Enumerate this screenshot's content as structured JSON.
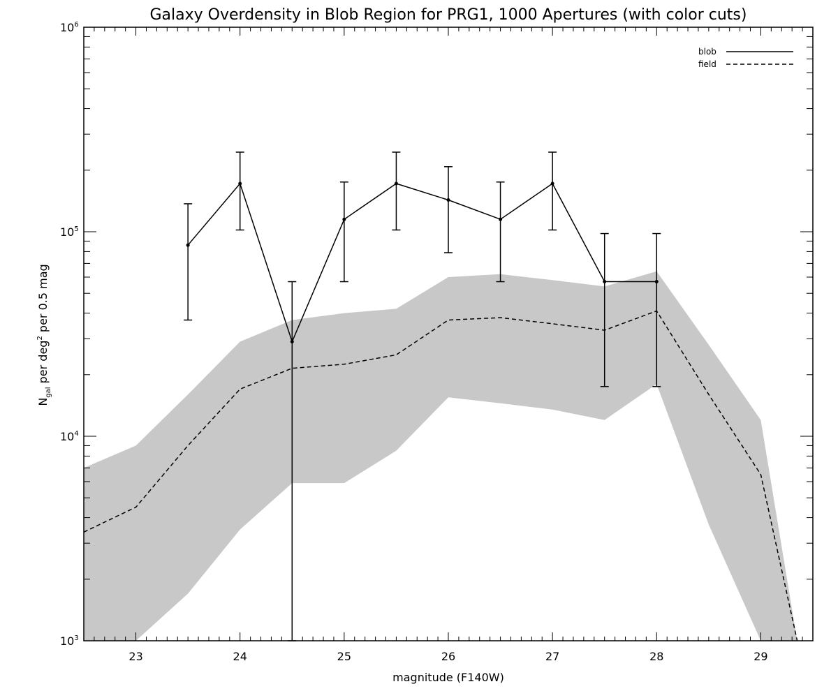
{
  "chart_data": {
    "type": "line",
    "title": "Galaxy Overdensity in Blob Region for PRG1, 1000 Apertures (with color cuts)",
    "xlabel": "magnitude (F140W)",
    "ylabel": "N_gal per deg² per 0.5 mag",
    "y_scale": "log",
    "xlim": [
      22.5,
      29.5
    ],
    "ylim": [
      1000,
      1000000
    ],
    "x_ticks": [
      23,
      24,
      25,
      26,
      27,
      28,
      29
    ],
    "x_tick_labels": [
      "23",
      "24",
      "25",
      "26",
      "27",
      "28",
      "29"
    ],
    "y_ticks": [
      1000,
      10000,
      100000,
      1000000
    ],
    "y_tick_labels": [
      {
        "base": "10",
        "exp": "3"
      },
      {
        "base": "10",
        "exp": "4"
      },
      {
        "base": "10",
        "exp": "5"
      },
      {
        "base": "10",
        "exp": "6"
      }
    ],
    "legend_position": "top-right",
    "grid": false,
    "series": [
      {
        "name": "blob",
        "style": "solid",
        "x": [
          23.5,
          24.0,
          24.5,
          25.0,
          25.5,
          26.0,
          26.5,
          27.0,
          27.5,
          28.0
        ],
        "y": [
          86000,
          172000,
          29000,
          115000,
          172000,
          143000,
          115000,
          172000,
          57000,
          57000
        ],
        "err_low": [
          37000,
          102000,
          1000,
          57000,
          102000,
          79000,
          57000,
          102000,
          17500,
          17500
        ],
        "err_high": [
          137000,
          245000,
          57000,
          175000,
          245000,
          208000,
          175000,
          245000,
          98000,
          98000
        ]
      },
      {
        "name": "field",
        "style": "dashed",
        "x": [
          22.5,
          23.0,
          23.5,
          24.0,
          24.5,
          25.0,
          25.5,
          26.0,
          26.5,
          27.0,
          27.5,
          28.0,
          28.5,
          29.0,
          29.35
        ],
        "y": [
          3400,
          4500,
          9000,
          17000,
          21500,
          22500,
          25000,
          37000,
          38000,
          35500,
          33000,
          41000,
          16000,
          6500,
          1000
        ],
        "band_low": [
          1000,
          1000,
          1700,
          3500,
          5900,
          5900,
          8500,
          15500,
          14500,
          13500,
          12000,
          18000,
          3700,
          1000,
          1000
        ],
        "band_high": [
          7000,
          9000,
          16000,
          29000,
          37000,
          40000,
          42000,
          60000,
          62000,
          58000,
          54000,
          64000,
          28000,
          12000,
          1000
        ]
      }
    ],
    "band_color": "#c8c8c8",
    "line_color": "#000000"
  }
}
